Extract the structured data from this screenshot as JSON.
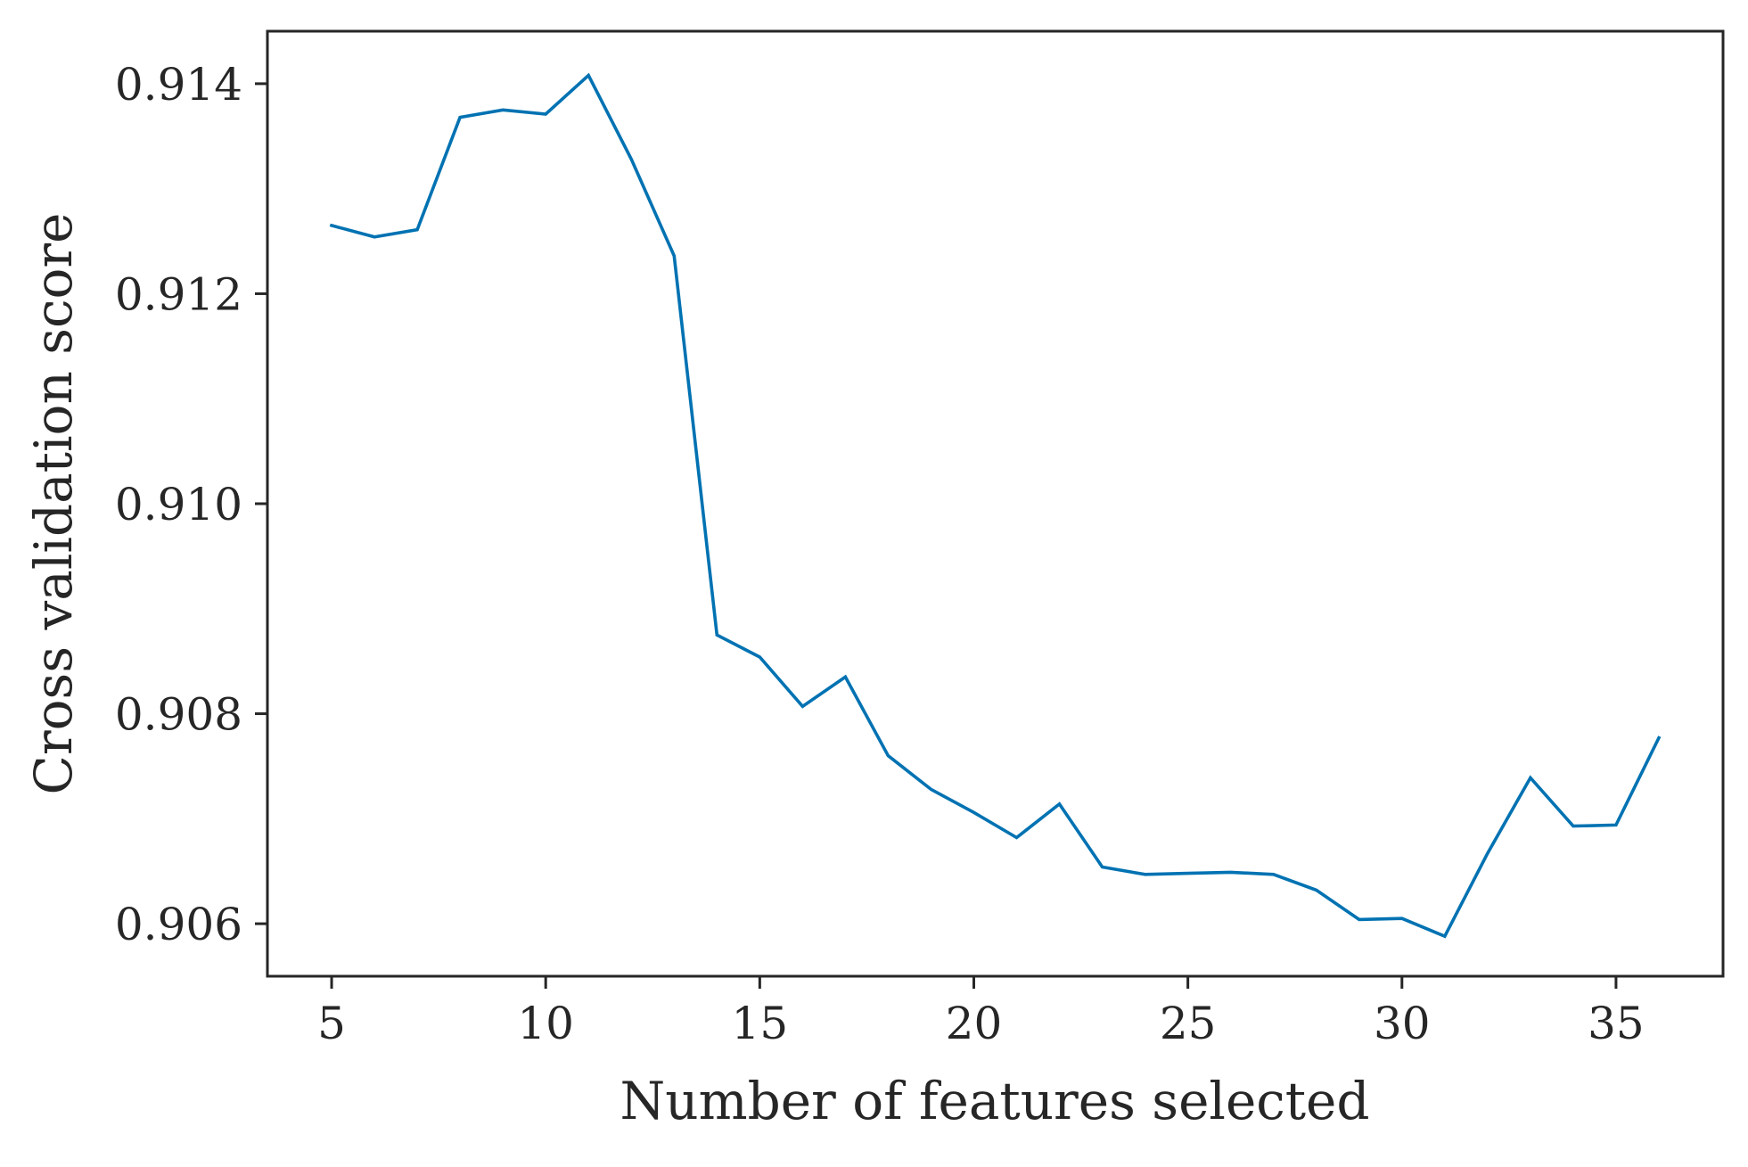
{
  "chart_data": {
    "type": "line",
    "title": "",
    "xlabel": "Number of features selected",
    "ylabel": "Cross validation score",
    "xlim": [
      3.5,
      37.5
    ],
    "ylim": [
      0.9055,
      0.9145
    ],
    "xticks": [
      5,
      10,
      15,
      20,
      25,
      30,
      35
    ],
    "xtick_labels": [
      "5",
      "10",
      "15",
      "20",
      "25",
      "30",
      "35"
    ],
    "yticks": [
      0.906,
      0.908,
      0.91,
      0.912,
      0.914
    ],
    "ytick_labels": [
      "0.906",
      "0.908",
      "0.910",
      "0.912",
      "0.914"
    ],
    "grid": false,
    "legend": "none",
    "line_color": "#0072b2",
    "axis_color": "#262626",
    "series": [
      {
        "x": [
          5,
          6,
          7,
          8,
          9,
          10,
          11,
          12,
          13,
          14,
          15,
          16,
          17,
          18,
          19,
          20,
          21,
          22,
          23,
          24,
          25,
          26,
          27,
          28,
          29,
          30,
          31,
          32,
          33,
          34,
          35,
          36
        ],
        "values": [
          0.91265,
          0.91254,
          0.91261,
          0.91368,
          0.91375,
          0.91371,
          0.91408,
          0.91328,
          0.91236,
          0.90875,
          0.90854,
          0.90807,
          0.90835,
          0.9076,
          0.90728,
          0.90706,
          0.90682,
          0.90714,
          0.90654,
          0.90647,
          0.90648,
          0.90649,
          0.90647,
          0.90632,
          0.90604,
          0.90605,
          0.90588,
          0.90667,
          0.90739,
          0.90693,
          0.90694,
          0.90777
        ]
      }
    ]
  }
}
